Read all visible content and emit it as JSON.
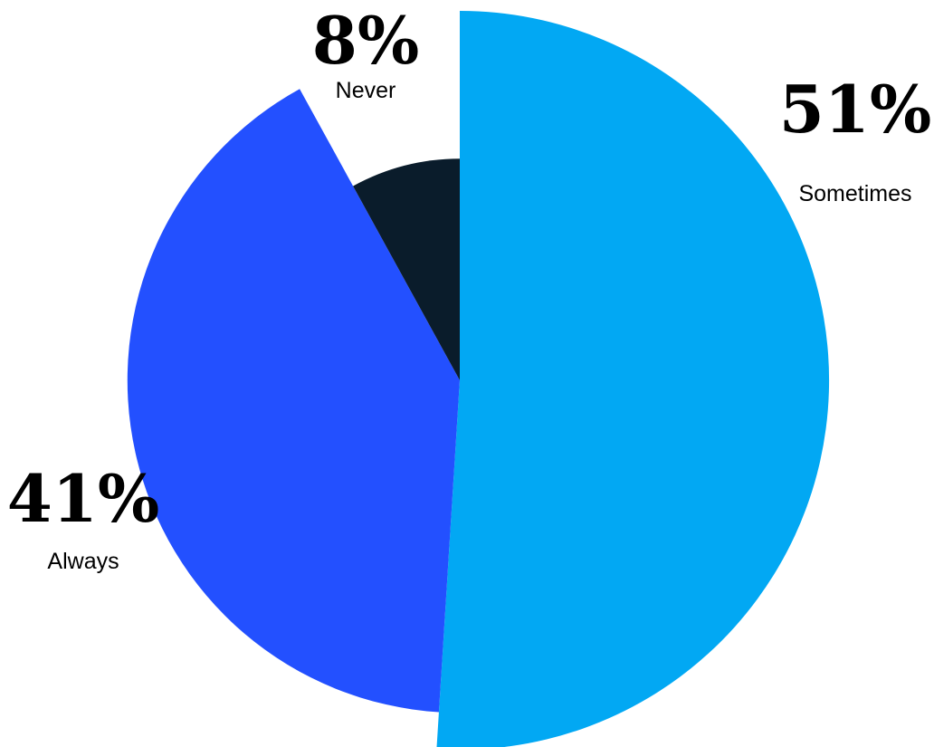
{
  "chart_data": {
    "type": "pie",
    "style": "radial-exploded",
    "start_angle_deg": 0,
    "direction": "clockwise",
    "slices": [
      {
        "label": "Sometimes",
        "value": 51,
        "value_label": "51%",
        "color": "#02A8F3",
        "radius_scale": 1.0
      },
      {
        "label": "Always",
        "value": 41,
        "value_label": "41%",
        "color": "#2350FF",
        "radius_scale": 0.9
      },
      {
        "label": "Never",
        "value": 8,
        "value_label": "8%",
        "color": "#0A1C2B",
        "radius_scale": 0.6
      }
    ]
  }
}
